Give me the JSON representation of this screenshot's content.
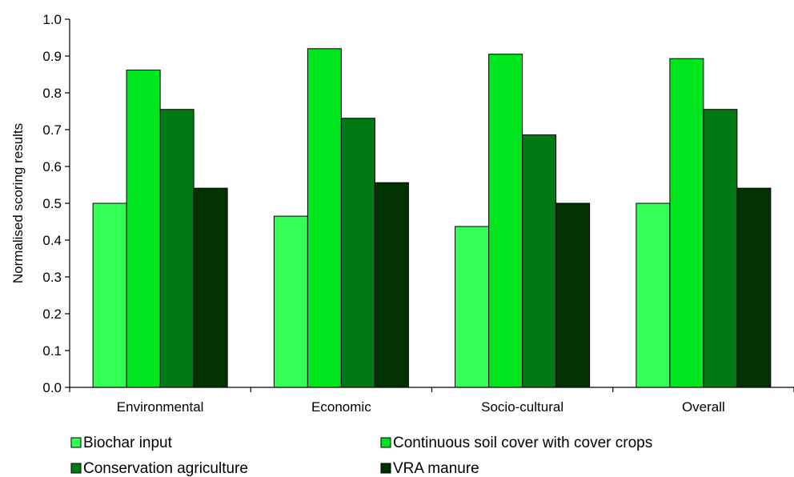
{
  "chart_data": {
    "type": "bar",
    "title": "",
    "xlabel": "",
    "ylabel": "Normalised scoring results",
    "ylim": [
      0,
      1.0
    ],
    "ytick_step": 0.1,
    "grid": false,
    "legend_position": "bottom",
    "categories": [
      "Environmental",
      "Economic",
      "Socio-cultural",
      "Overall"
    ],
    "series": [
      {
        "name": "Biochar input",
        "color": "#33ff55",
        "values": [
          0.5,
          0.465,
          0.437,
          0.5
        ]
      },
      {
        "name": "Continuous soil cover with cover crops",
        "color": "#00e61e",
        "values": [
          0.862,
          0.92,
          0.905,
          0.893
        ]
      },
      {
        "name": "Conservation agriculture",
        "color": "#007a14",
        "values": [
          0.755,
          0.731,
          0.686,
          0.755
        ]
      },
      {
        "name": "VRA manure",
        "color": "#003300",
        "values": [
          0.541,
          0.556,
          0.5,
          0.541
        ]
      }
    ]
  }
}
